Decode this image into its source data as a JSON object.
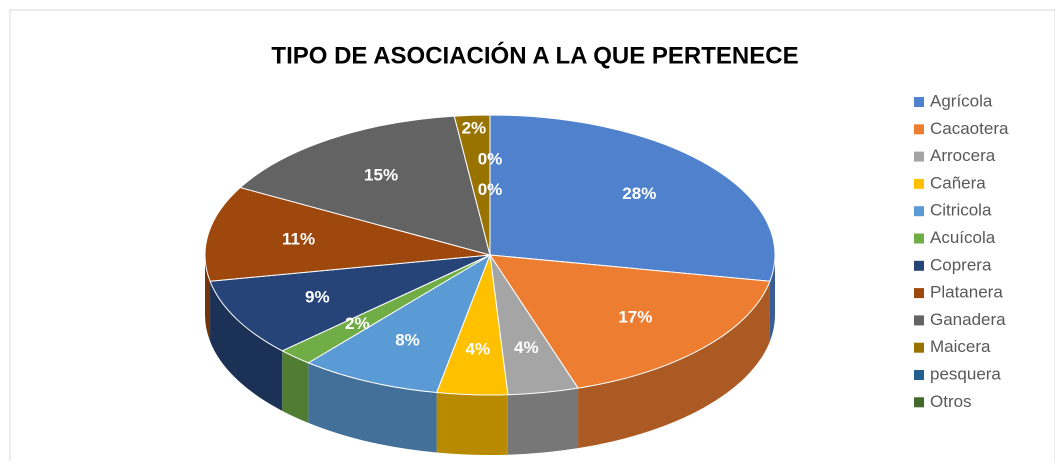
{
  "chart_data": {
    "type": "pie",
    "title": "TIPO DE ASOCIACIÓN A LA QUE PERTENECE",
    "categories": [
      "Agrícola",
      "Cacaotera",
      "Arrocera",
      "Cañera",
      "Citricola",
      "Acuícola",
      "Coprera",
      "Platanera",
      "Ganadera",
      "Maicera",
      "pesquera",
      "Otros"
    ],
    "values": [
      28,
      17,
      4,
      4,
      8,
      2,
      9,
      11,
      15,
      2,
      0,
      0
    ],
    "value_labels": [
      "28%",
      "17%",
      "4%",
      "4%",
      "8%",
      "2%",
      "9%",
      "11%",
      "15%",
      "2%",
      "0%",
      "0%"
    ],
    "colors": [
      "#4f81cd",
      "#ed7d31",
      "#a5a5a5",
      "#ffc000",
      "#5b9bd5",
      "#70ad47",
      "#264478",
      "#9e480e",
      "#636363",
      "#997300",
      "#255e91",
      "#43682b"
    ],
    "legend": "right"
  }
}
